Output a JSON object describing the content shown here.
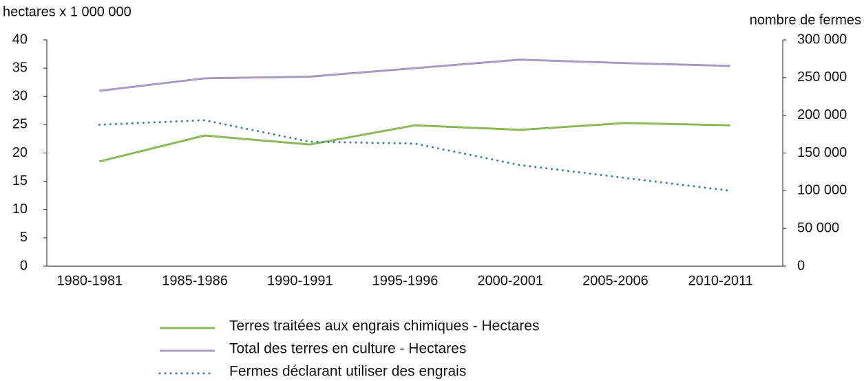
{
  "chart_data": {
    "type": "line",
    "y_label": "hectares x 1 000 000",
    "y2_label": "nombre de fermes",
    "categories": [
      "1980-1981",
      "1985-1986",
      "1990-1991",
      "1995-1996",
      "2000-2001",
      "2005-2006",
      "2010-2011"
    ],
    "series": [
      {
        "name": "Terres traitées aux engrais chimiques - Hectares",
        "color": "#8db85a",
        "line_style": "solid",
        "values": [
          18.5,
          23.1,
          21.5,
          24.9,
          24.1,
          25.3,
          24.9
        ]
      },
      {
        "name": "Total des terres en culture - Hectares",
        "color": "#a99bbf",
        "line_style": "solid",
        "values": [
          31.0,
          33.2,
          33.5,
          35.0,
          36.5,
          35.9,
          35.4
        ]
      },
      {
        "name": "Fermes déclarant utiliser des engrais",
        "color": "#3b78b0",
        "line_style": "dotted",
        "axis": "y2",
        "values": [
          187500,
          193500,
          165000,
          162500,
          134000,
          117000,
          100000
        ]
      }
    ],
    "ylim": [
      0,
      40
    ],
    "yticks": [
      0,
      5,
      10,
      15,
      20,
      25,
      30,
      35,
      40
    ],
    "y2lim": [
      0,
      300000
    ],
    "y2ticks": [
      0,
      {
        "value": 50000,
        "label": "50 000"
      },
      {
        "value": 100000,
        "label": "100 000"
      },
      {
        "value": 150000,
        "label": "150 000"
      },
      {
        "value": 200000,
        "label": "200 000"
      },
      {
        "value": 250000,
        "label": "250 000"
      },
      {
        "value": 300000,
        "label": "300 000"
      }
    ],
    "grid": false,
    "legend": "bottom"
  }
}
